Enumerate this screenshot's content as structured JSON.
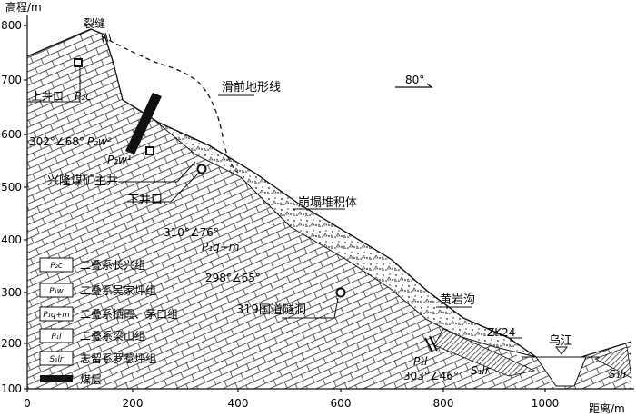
{
  "axes": {
    "y_title": "高程/m",
    "x_title": "距离/m",
    "y_ticks": [
      "800",
      "700",
      "600",
      "500",
      "400",
      "300",
      "200",
      "100"
    ],
    "x_ticks": [
      "0",
      "200",
      "400",
      "600",
      "800",
      "1000"
    ]
  },
  "labels": {
    "crack": "裂缝",
    "pre_slide_terrain": "滑前地形线",
    "upper_adit": "上井口",
    "upper_adit_formation": "P₂c",
    "attitude_1": "302°∠68°",
    "formation_p2w2": "P₂w²",
    "formation_p2w1": "P₂w¹",
    "mine_main_shaft": "兴隆煤矿主井",
    "lower_adit": "下井口",
    "collapse_deposit": "崩塌堆积体",
    "attitude_2": "310°∠76°",
    "formation_p1qm": "P₁q+m",
    "attitude_3": "298°∠65°",
    "tunnel_319": "319国道隧洞",
    "huangyangou": "黄岩沟",
    "zk24": "ZK24",
    "wujiang": "乌江",
    "formation_p1l": "P₁l",
    "attitude_4": "303°∠46°",
    "formation_s1lr_left": "S₁lr",
    "formation_s1lr_right": "S₁lr",
    "north_direction": "80°"
  },
  "legend": [
    {
      "key": "P₂c",
      "text": "二叠系长兴组"
    },
    {
      "key": "P₁w",
      "text": "二叠系吴家坪组"
    },
    {
      "key": "P₁q+m",
      "text": "二叠系栖霞、茅口组"
    },
    {
      "key": "P₁l",
      "text": "二叠系梁山组"
    },
    {
      "key": "S₁lr",
      "text": "志留系罗惹坪组"
    },
    {
      "key": "",
      "text": "煤层"
    }
  ]
}
